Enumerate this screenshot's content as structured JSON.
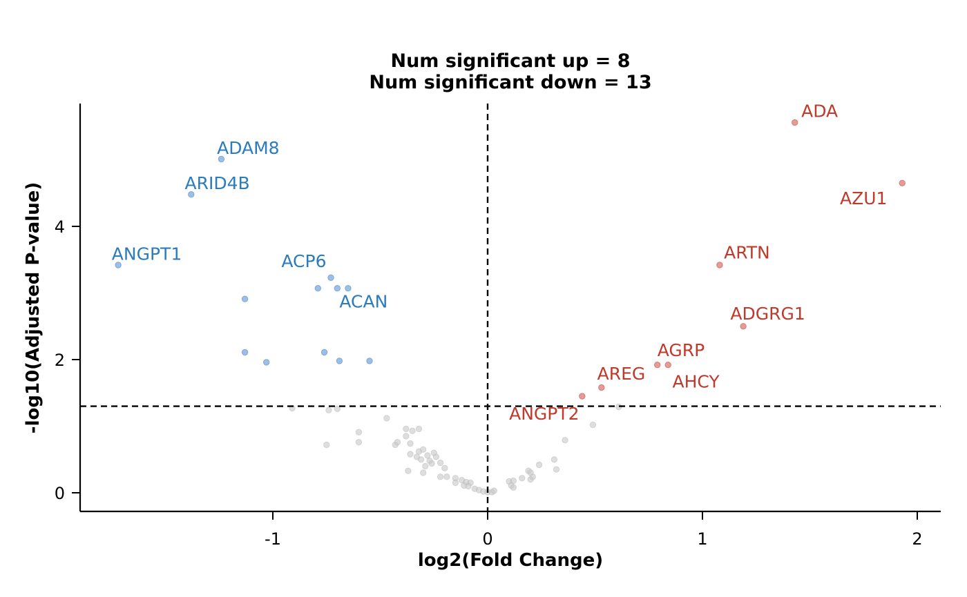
{
  "chart_data": {
    "type": "scatter",
    "title_lines": [
      "Num significant up = 8",
      "Num significant down = 13"
    ],
    "xlabel": "log2(Fold Change)",
    "ylabel": "-log10(Adjusted P-value)",
    "xlim": [
      -1.9,
      2.1
    ],
    "ylim": [
      -0.27,
      5.9
    ],
    "x_ticks": [
      {
        "value": -1,
        "label": "-1"
      },
      {
        "value": 0,
        "label": "0"
      },
      {
        "value": 1,
        "label": "1"
      },
      {
        "value": 2,
        "label": "2"
      }
    ],
    "y_ticks": [
      {
        "value": 0,
        "label": "0"
      },
      {
        "value": 2,
        "label": "2"
      },
      {
        "value": 4,
        "label": "4"
      }
    ],
    "thresholds": {
      "vertical_x": 0,
      "horizontal_y": 1.3
    },
    "colors": {
      "up": "#c0392b",
      "down": "#2b7bbf",
      "ns": "#c8c8c8",
      "up_point": "#e08a84",
      "down_point": "#8bb4e0"
    },
    "series": [
      {
        "name": "down",
        "points": [
          {
            "x": -1.72,
            "y": 3.42,
            "label": "ANGPT1"
          },
          {
            "x": -1.38,
            "y": 4.48,
            "label": "ARID4B"
          },
          {
            "x": -1.24,
            "y": 5.01,
            "label": "ADAM8"
          },
          {
            "x": -0.73,
            "y": 3.23,
            "label": "ACP6"
          },
          {
            "x": -0.65,
            "y": 3.07,
            "label": "ACAN"
          },
          {
            "x": -0.79,
            "y": 3.07
          },
          {
            "x": -0.7,
            "y": 3.07
          },
          {
            "x": -1.13,
            "y": 2.91
          },
          {
            "x": -1.13,
            "y": 2.11
          },
          {
            "x": -1.03,
            "y": 1.96
          },
          {
            "x": -0.76,
            "y": 2.11
          },
          {
            "x": -0.69,
            "y": 1.98
          },
          {
            "x": -0.55,
            "y": 1.98
          }
        ]
      },
      {
        "name": "up",
        "points": [
          {
            "x": 1.43,
            "y": 5.56,
            "label": "ADA"
          },
          {
            "x": 1.93,
            "y": 4.65,
            "label": "AZU1"
          },
          {
            "x": 1.08,
            "y": 3.42,
            "label": "ARTN"
          },
          {
            "x": 1.19,
            "y": 2.5,
            "label": "ADGRG1"
          },
          {
            "x": 0.79,
            "y": 1.92,
            "label": "AGRP"
          },
          {
            "x": 0.84,
            "y": 1.92,
            "label": "AHCY"
          },
          {
            "x": 0.53,
            "y": 1.58,
            "label": "AREG"
          },
          {
            "x": 0.44,
            "y": 1.45,
            "label": "ANGPT2"
          }
        ]
      },
      {
        "name": "ns",
        "points": [
          {
            "x": -0.91,
            "y": 1.27
          },
          {
            "x": -0.74,
            "y": 1.24
          },
          {
            "x": -0.7,
            "y": 1.26
          },
          {
            "x": -0.47,
            "y": 1.12
          },
          {
            "x": -0.6,
            "y": 0.91
          },
          {
            "x": -0.6,
            "y": 0.76
          },
          {
            "x": -0.75,
            "y": 0.72
          },
          {
            "x": -0.38,
            "y": 0.96
          },
          {
            "x": -0.35,
            "y": 0.93
          },
          {
            "x": -0.32,
            "y": 0.96
          },
          {
            "x": -0.38,
            "y": 0.85
          },
          {
            "x": -0.43,
            "y": 0.72
          },
          {
            "x": -0.42,
            "y": 0.76
          },
          {
            "x": -0.36,
            "y": 0.74
          },
          {
            "x": -0.32,
            "y": 0.62
          },
          {
            "x": -0.3,
            "y": 0.65
          },
          {
            "x": -0.28,
            "y": 0.56
          },
          {
            "x": -0.25,
            "y": 0.6
          },
          {
            "x": -0.24,
            "y": 0.54
          },
          {
            "x": -0.36,
            "y": 0.58
          },
          {
            "x": -0.33,
            "y": 0.54
          },
          {
            "x": -0.31,
            "y": 0.5
          },
          {
            "x": -0.27,
            "y": 0.48
          },
          {
            "x": -0.26,
            "y": 0.44
          },
          {
            "x": -0.22,
            "y": 0.45
          },
          {
            "x": -0.2,
            "y": 0.37
          },
          {
            "x": -0.29,
            "y": 0.4
          },
          {
            "x": -0.37,
            "y": 0.33
          },
          {
            "x": -0.3,
            "y": 0.3
          },
          {
            "x": -0.22,
            "y": 0.24
          },
          {
            "x": -0.19,
            "y": 0.24
          },
          {
            "x": -0.15,
            "y": 0.22
          },
          {
            "x": -0.12,
            "y": 0.19
          },
          {
            "x": -0.15,
            "y": 0.15
          },
          {
            "x": -0.1,
            "y": 0.16
          },
          {
            "x": -0.08,
            "y": 0.15
          },
          {
            "x": -0.09,
            "y": 0.1
          },
          {
            "x": -0.06,
            "y": 0.06
          },
          {
            "x": -0.04,
            "y": 0.04
          },
          {
            "x": -0.02,
            "y": 0.02
          },
          {
            "x": 0.0,
            "y": 0.01
          },
          {
            "x": 0.02,
            "y": 0.01
          },
          {
            "x": 0.03,
            "y": 0.03
          },
          {
            "x": -0.11,
            "y": 0.11
          },
          {
            "x": 0.1,
            "y": 0.17
          },
          {
            "x": 0.12,
            "y": 0.18
          },
          {
            "x": 0.11,
            "y": 0.11
          },
          {
            "x": 0.12,
            "y": 0.08
          },
          {
            "x": 0.16,
            "y": 0.22
          },
          {
            "x": 0.19,
            "y": 0.33
          },
          {
            "x": 0.2,
            "y": 0.3
          },
          {
            "x": 0.2,
            "y": 0.2
          },
          {
            "x": 0.21,
            "y": 0.24
          },
          {
            "x": 0.24,
            "y": 0.42
          },
          {
            "x": 0.31,
            "y": 0.5
          },
          {
            "x": 0.32,
            "y": 0.35
          },
          {
            "x": 0.36,
            "y": 0.79
          },
          {
            "x": 0.49,
            "y": 1.02
          },
          {
            "x": 0.61,
            "y": 1.29
          }
        ]
      }
    ],
    "annotations": [
      {
        "label": "ANGPT1",
        "x": -1.75,
        "y": 3.5,
        "group": "down"
      },
      {
        "label": "ARID4B",
        "x": -1.41,
        "y": 4.56,
        "group": "down"
      },
      {
        "label": "ADAM8",
        "x": -1.26,
        "y": 5.09,
        "group": "down"
      },
      {
        "label": "ACP6",
        "x": -0.96,
        "y": 3.39,
        "group": "down"
      },
      {
        "label": "ACAN",
        "x": -0.69,
        "y": 2.78,
        "group": "down"
      },
      {
        "label": "ADA",
        "x": 1.46,
        "y": 5.64,
        "group": "up"
      },
      {
        "label": "AZU1",
        "x": 1.64,
        "y": 4.33,
        "group": "up"
      },
      {
        "label": "ARTN",
        "x": 1.1,
        "y": 3.52,
        "group": "up"
      },
      {
        "label": "ADGRG1",
        "x": 1.13,
        "y": 2.6,
        "group": "up"
      },
      {
        "label": "AGRP",
        "x": 0.79,
        "y": 2.05,
        "group": "up"
      },
      {
        "label": "AHCY",
        "x": 0.86,
        "y": 1.58,
        "group": "up"
      },
      {
        "label": "AREG",
        "x": 0.51,
        "y": 1.7,
        "group": "up"
      },
      {
        "label": "ANGPT2",
        "x": 0.1,
        "y": 1.1,
        "group": "up"
      }
    ]
  }
}
